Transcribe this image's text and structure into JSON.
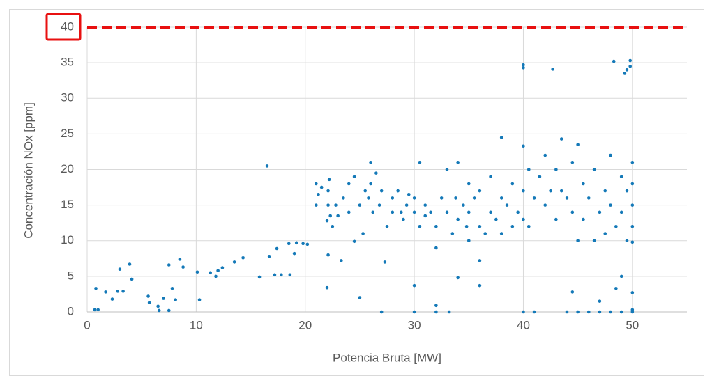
{
  "chart_data": {
    "type": "scatter",
    "xlabel": "Potencia Bruta [MW]",
    "ylabel": "Concentración NOx  [ppm]",
    "color": "#1479b8",
    "xlim": [
      0,
      55
    ],
    "xticks": [
      0,
      10,
      20,
      30,
      40,
      50
    ],
    "ylim": [
      0,
      40
    ],
    "yticks": [
      0,
      5,
      10,
      15,
      20,
      25,
      30,
      35,
      40
    ],
    "grid": true,
    "reference_line": {
      "value": 40,
      "color": "#e81010",
      "style": "dashed"
    },
    "highlighted_ytick": 40,
    "x": [
      0.7,
      1,
      0.8,
      1.7,
      2.3,
      2.8,
      3,
      3.3,
      3.9,
      4.1,
      5.6,
      5.7,
      6.5,
      6.6,
      7,
      7.5,
      7.5,
      7.8,
      8.1,
      8.5,
      8.8,
      10.1,
      10.3,
      11.3,
      11.8,
      12,
      12.4,
      13.5,
      14.3,
      15.8,
      16.5,
      16.7,
      17.2,
      17.4,
      17.8,
      18.5,
      18.6,
      19,
      19.2,
      19.8,
      20.2,
      21,
      21,
      21.2,
      21.5,
      22,
      22.1,
      22,
      22.1,
      22.1,
      22.2,
      22.3,
      22.5,
      22.8,
      23,
      23.3,
      23.5,
      24,
      24,
      24.5,
      24.5,
      25,
      25,
      25.3,
      25.5,
      25.8,
      26,
      26,
      26.2,
      26.5,
      26.8,
      27,
      27,
      27.3,
      27.5,
      28,
      28,
      28.5,
      28.8,
      29,
      29.3,
      29.5,
      30,
      30,
      30,
      30,
      30.5,
      30.5,
      31,
      31,
      31.5,
      32,
      32,
      32,
      32,
      32.5,
      33,
      33,
      33.2,
      33.5,
      33.8,
      34,
      34,
      34,
      34.5,
      34.8,
      35,
      35,
      35,
      35.5,
      36,
      36,
      36,
      36,
      36.5,
      37,
      37,
      37.5,
      38,
      38,
      38,
      38.5,
      39,
      39,
      39.5,
      40,
      40,
      40,
      40,
      40,
      40,
      40.5,
      40.5,
      41,
      41,
      41.5,
      42,
      42,
      42.5,
      42.7,
      43,
      43,
      43.5,
      43.5,
      44,
      44,
      44.5,
      44.5,
      44.5,
      45,
      45,
      45,
      45.5,
      45.5,
      46,
      46,
      46.5,
      46.5,
      47,
      47,
      47,
      47.5,
      47.5,
      48,
      48,
      48,
      48.3,
      48.5,
      48.5,
      49,
      49,
      49,
      49,
      49.3,
      49.5,
      49.5,
      49.5,
      49.8,
      49.8,
      50,
      50,
      50,
      50,
      50,
      50,
      50,
      50
    ],
    "values": [
      0.3,
      0.3,
      3.3,
      2.8,
      1.8,
      2.9,
      6,
      2.9,
      6.7,
      4.6,
      2.2,
      1.3,
      0.8,
      0.2,
      1.9,
      6.6,
      0.2,
      3.3,
      1.7,
      7.4,
      6.3,
      5.6,
      1.7,
      5.5,
      5,
      5.8,
      6.2,
      7,
      7.6,
      4.9,
      20.5,
      7.8,
      5.2,
      8.9,
      5.2,
      9.6,
      5.2,
      8.2,
      9.7,
      9.6,
      9.5,
      18,
      15,
      16.5,
      17.5,
      3.4,
      8,
      12.8,
      15,
      17,
      18.6,
      13.5,
      12,
      15,
      13.5,
      7.2,
      16,
      18,
      14,
      19,
      9.9,
      15,
      2,
      11,
      17,
      16,
      21,
      18,
      14,
      19.5,
      15,
      17,
      0,
      7,
      12,
      14,
      16,
      17,
      14,
      13,
      15,
      16.5,
      3.7,
      0,
      14,
      16,
      21,
      12,
      15,
      13.5,
      14,
      0.9,
      0,
      12,
      9,
      16,
      14,
      20,
      0,
      11,
      16,
      4.8,
      13,
      21,
      15,
      12,
      18,
      10,
      14,
      16,
      3.7,
      7.2,
      12,
      17,
      11,
      14,
      19,
      13,
      24.5,
      16,
      11,
      15,
      18,
      12,
      14,
      34.7,
      34.3,
      23.3,
      17,
      13,
      0,
      20,
      12,
      0,
      16,
      19,
      22,
      15,
      17,
      34.1,
      20,
      13,
      24.3,
      17,
      16,
      0,
      21,
      2.8,
      14,
      23.5,
      10,
      0,
      18,
      13,
      16,
      0,
      20,
      10,
      0,
      14,
      1.5,
      17,
      11,
      22,
      15,
      0,
      35.2,
      3.3,
      12,
      19,
      14,
      0,
      5,
      33.5,
      34,
      10,
      17,
      35.3,
      34.5,
      2.7,
      0.3,
      0,
      21,
      18,
      15,
      12,
      9.8
    ]
  }
}
